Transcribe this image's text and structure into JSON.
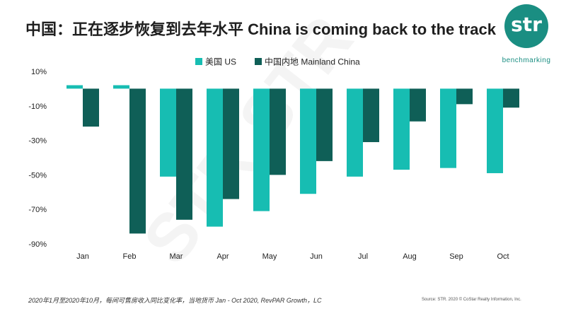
{
  "title": "中国：正在逐步恢复到去年水平 China is coming back to the track",
  "logo": {
    "text": "str",
    "subtitle": "benchmarking"
  },
  "footnote": "2020年1月至2020年10月，每间可售房收入同比变化率，当地货币  Jan - Oct 2020, RevPAR Growth，LC",
  "source": "Source: STR. 2020 © CoStar Realty Information, Inc.",
  "watermark": "STR STR",
  "colors": {
    "us": "#17bdb2",
    "china": "#0f5f57",
    "brand": "#1a8e82"
  },
  "chart_data": {
    "type": "bar",
    "categories": [
      "Jan",
      "Feb",
      "Mar",
      "Apr",
      "May",
      "Jun",
      "Jul",
      "Aug",
      "Sep",
      "Oct"
    ],
    "series": [
      {
        "name": "美国 US",
        "values": [
          2,
          2,
          -51,
          -80,
          -71,
          -61,
          -51,
          -47,
          -46,
          -49
        ]
      },
      {
        "name": "中国内地 Mainland China",
        "values": [
          -22,
          -84,
          -76,
          -64,
          -50,
          -42,
          -31,
          -19,
          -9,
          -11
        ]
      }
    ],
    "yticks": [
      "10%",
      "-10%",
      "-30%",
      "-50%",
      "-70%",
      "-90%"
    ],
    "ylim": [
      -90,
      10
    ],
    "legend": "top",
    "grid": false,
    "xlabel": "",
    "ylabel": ""
  }
}
